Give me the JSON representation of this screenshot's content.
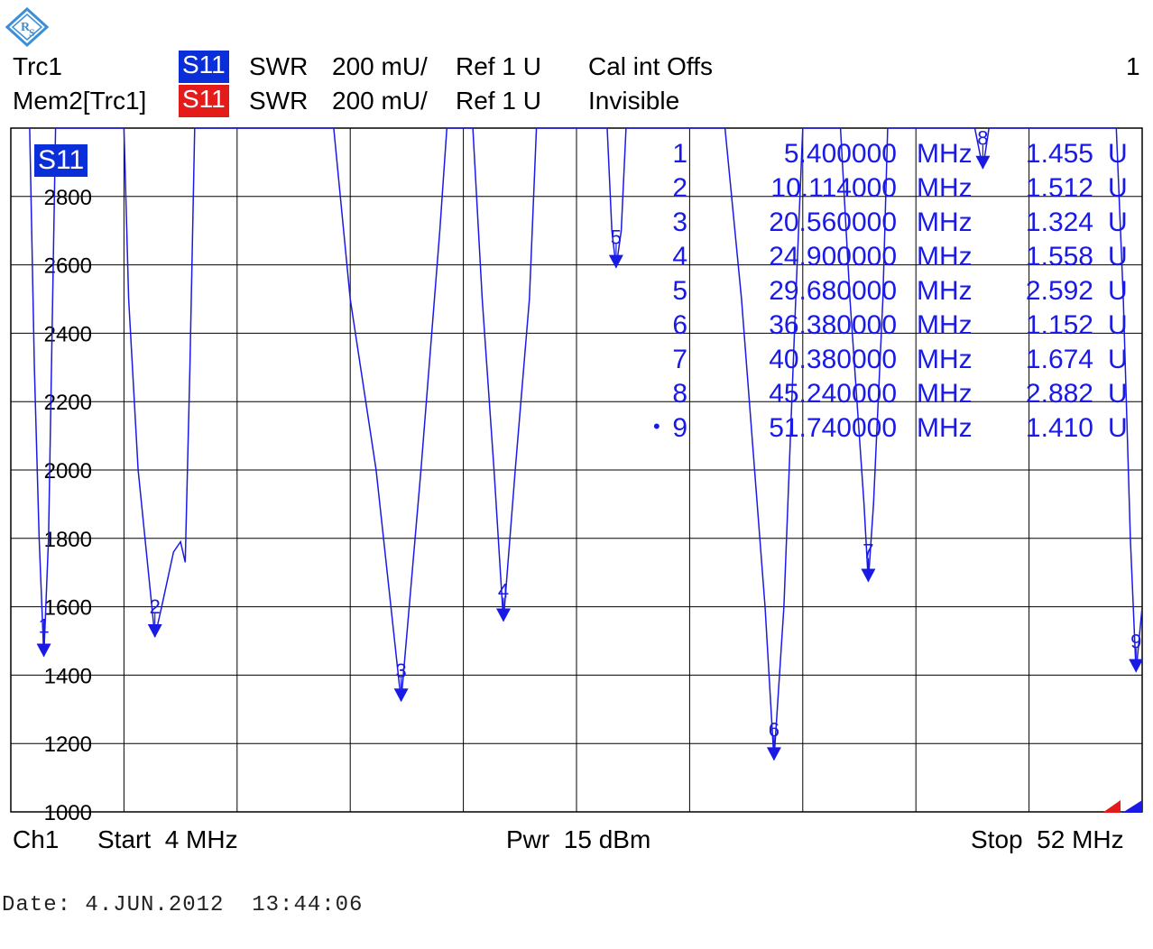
{
  "header": {
    "row1": {
      "trace": "Trc1",
      "param": "S11",
      "format": "SWR",
      "scale": "200 mU/",
      "ref": "Ref 1 U",
      "status": "Cal int Offs",
      "channel_num": "1"
    },
    "row2": {
      "trace": "Mem2[Trc1]",
      "param": "S11",
      "format": "SWR",
      "scale": "200 mU/",
      "ref": "Ref 1 U",
      "status": "Invisible"
    }
  },
  "colors": {
    "trace": "#1a1ae6",
    "tag_blue": "#0a2fd8",
    "tag_red": "#e41b1b",
    "grid": "#000000"
  },
  "plot": {
    "trace_label": "S11"
  },
  "footer": {
    "channel": "Ch1",
    "start": "Start  4 MHz",
    "power": "Pwr  15 dBm",
    "stop": "Stop  52 MHz"
  },
  "date_line": "Date: 4.JUN.2012  13:44:06",
  "markers": [
    {
      "num": "1",
      "freq": "5.400000",
      "unit": "MHz",
      "value": "1.455",
      "vunit": "U",
      "active": false
    },
    {
      "num": "2",
      "freq": "10.114000",
      "unit": "MHz",
      "value": "1.512",
      "vunit": "U",
      "active": false
    },
    {
      "num": "3",
      "freq": "20.560000",
      "unit": "MHz",
      "value": "1.324",
      "vunit": "U",
      "active": false
    },
    {
      "num": "4",
      "freq": "24.900000",
      "unit": "MHz",
      "value": "1.558",
      "vunit": "U",
      "active": false
    },
    {
      "num": "5",
      "freq": "29.680000",
      "unit": "MHz",
      "value": "2.592",
      "vunit": "U",
      "active": false
    },
    {
      "num": "6",
      "freq": "36.380000",
      "unit": "MHz",
      "value": "1.152",
      "vunit": "U",
      "active": false
    },
    {
      "num": "7",
      "freq": "40.380000",
      "unit": "MHz",
      "value": "1.674",
      "vunit": "U",
      "active": false
    },
    {
      "num": "8",
      "freq": "45.240000",
      "unit": "MHz",
      "value": "2.882",
      "vunit": "U",
      "active": false
    },
    {
      "num": "9",
      "freq": "51.740000",
      "unit": "MHz",
      "value": "1.410",
      "vunit": "U",
      "active": true
    }
  ],
  "chart_data": {
    "type": "line",
    "title": "",
    "xlabel": "",
    "ylabel": "",
    "xlim": [
      4,
      52
    ],
    "ylim": [
      1000,
      3000
    ],
    "grid": true,
    "yticks": [
      1000,
      1200,
      1400,
      1600,
      1800,
      2000,
      2200,
      2400,
      2600,
      2800
    ],
    "series": [
      {
        "name": "S11",
        "points": [
          [
            4.8,
            3000
          ],
          [
            5.0,
            2300
          ],
          [
            5.2,
            1800
          ],
          [
            5.4,
            1455
          ],
          [
            5.6,
            1800
          ],
          [
            5.9,
            3000
          ],
          [
            8.8,
            3000
          ],
          [
            9.0,
            2500
          ],
          [
            9.4,
            2000
          ],
          [
            10.114,
            1512
          ],
          [
            10.4,
            1600
          ],
          [
            10.9,
            1760
          ],
          [
            11.2,
            1790
          ],
          [
            11.4,
            1730
          ],
          [
            11.6,
            2300
          ],
          [
            11.8,
            3000
          ],
          [
            17.7,
            3000
          ],
          [
            18.4,
            2500
          ],
          [
            19.5,
            2000
          ],
          [
            20.56,
            1324
          ],
          [
            21.4,
            2000
          ],
          [
            22.2,
            2700
          ],
          [
            22.5,
            3000
          ],
          [
            23.6,
            3000
          ],
          [
            24.0,
            2500
          ],
          [
            24.5,
            2000
          ],
          [
            24.9,
            1558
          ],
          [
            25.4,
            2000
          ],
          [
            26.0,
            2500
          ],
          [
            26.3,
            3000
          ],
          [
            29.3,
            3000
          ],
          [
            29.5,
            2700
          ],
          [
            29.68,
            2592
          ],
          [
            29.9,
            2700
          ],
          [
            30.1,
            3000
          ],
          [
            34.3,
            3000
          ],
          [
            35.0,
            2500
          ],
          [
            36.0,
            1600
          ],
          [
            36.38,
            1152
          ],
          [
            36.8,
            1600
          ],
          [
            37.3,
            2500
          ],
          [
            37.6,
            3000
          ],
          [
            39.2,
            3000
          ],
          [
            39.6,
            2500
          ],
          [
            40.2,
            1900
          ],
          [
            40.38,
            1674
          ],
          [
            40.6,
            1900
          ],
          [
            41.0,
            2500
          ],
          [
            41.2,
            3000
          ],
          [
            44.9,
            3000
          ],
          [
            45.24,
            2882
          ],
          [
            45.5,
            3000
          ],
          [
            50.9,
            3000
          ],
          [
            51.2,
            2500
          ],
          [
            51.5,
            1800
          ],
          [
            51.74,
            1410
          ],
          [
            52.0,
            1600
          ]
        ]
      }
    ],
    "markers": [
      {
        "label": "1",
        "x": 5.4,
        "y": 1455
      },
      {
        "label": "2",
        "x": 10.114,
        "y": 1512
      },
      {
        "label": "3",
        "x": 20.56,
        "y": 1324
      },
      {
        "label": "4",
        "x": 24.9,
        "y": 1558
      },
      {
        "label": "5",
        "x": 29.68,
        "y": 2592
      },
      {
        "label": "6",
        "x": 36.38,
        "y": 1152
      },
      {
        "label": "7",
        "x": 40.38,
        "y": 1674
      },
      {
        "label": "8",
        "x": 45.24,
        "y": 2882
      },
      {
        "label": "9",
        "x": 51.74,
        "y": 1410
      }
    ]
  }
}
